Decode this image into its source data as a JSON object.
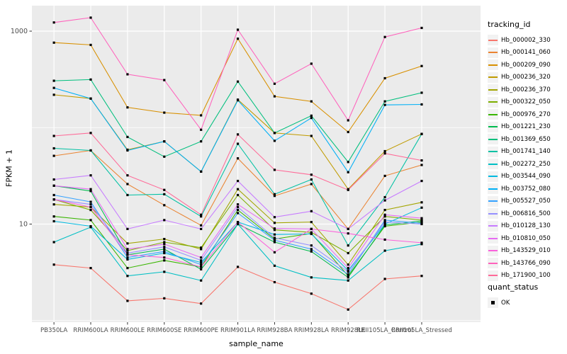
{
  "chart_data": {
    "type": "line",
    "title": "",
    "xlabel": "sample_name",
    "ylabel": "FPKM + 1",
    "y_scale": "log10",
    "y_tick_values": [
      10,
      1000
    ],
    "y_tick_labels": [
      "10",
      "1000"
    ],
    "y_minor_gridlines": [
      1,
      100
    ],
    "ylim": [
      0.95,
      1750
    ],
    "grid": "on",
    "legend_position": "right",
    "legend_title": "tracking_id",
    "quant_legend": {
      "title": "quant_status",
      "items": [
        "OK"
      ],
      "marker": "black-square"
    },
    "point_marker": "black-square",
    "categories": [
      "PB350LA",
      "RRIM600LA",
      "RRIM600LE",
      "RRIM600SE",
      "RRIM600PE",
      "RRIM901LA",
      "RRIM928BA",
      "RRIM928LA",
      "RRIM928LE",
      "RRII105LA_Control",
      "RRII105LA_Stressed"
    ],
    "series": [
      {
        "name": "Hb_000002_330",
        "color": "#F8766D",
        "values": [
          3.8,
          3.5,
          1.6,
          1.7,
          1.5,
          3.6,
          2.5,
          1.9,
          1.3,
          2.7,
          2.9
        ]
      },
      {
        "name": "Hb_000141_060",
        "color": "#EA8331",
        "values": [
          51,
          58,
          26,
          15.7,
          9.7,
          48,
          19.6,
          26,
          8.9,
          31.6,
          41
        ]
      },
      {
        "name": "Hb_000209_090",
        "color": "#D89000",
        "values": [
          760,
          720,
          162,
          143,
          134,
          835,
          211,
          187,
          90,
          325,
          435
        ]
      },
      {
        "name": "Hb_000236_320",
        "color": "#C09B00",
        "values": [
          219,
          200,
          59,
          72,
          35,
          195,
          88,
          82,
          23,
          57,
          86
        ]
      },
      {
        "name": "Hb_000236_370",
        "color": "#A3A500",
        "values": [
          16,
          15,
          6.3,
          7.0,
          5.5,
          23,
          10.3,
          10.5,
          3.8,
          14,
          16.8
        ]
      },
      {
        "name": "Hb_000322_050",
        "color": "#7CAE00",
        "values": [
          18,
          14,
          5.3,
          6.5,
          5.7,
          20,
          8.7,
          8.2,
          5.0,
          12,
          11
        ]
      },
      {
        "name": "Hb_000976_270",
        "color": "#39B600",
        "values": [
          12,
          11,
          3.5,
          4.2,
          3.6,
          14,
          7.0,
          8.0,
          2.9,
          9.5,
          10.5
        ]
      },
      {
        "name": "Hb_001221_230",
        "color": "#00BB4E",
        "values": [
          25,
          22,
          4.8,
          5.5,
          3.4,
          10,
          6.5,
          5.2,
          2.8,
          9.8,
          10.8
        ]
      },
      {
        "name": "Hb_001369_650",
        "color": "#00BF7D",
        "values": [
          306,
          315,
          80,
          50,
          72,
          300,
          88,
          133,
          44,
          187,
          230
        ]
      },
      {
        "name": "Hb_001741_140",
        "color": "#00C1A3",
        "values": [
          61,
          58,
          20,
          20.4,
          12,
          68,
          20.4,
          29,
          6.0,
          19,
          86
        ]
      },
      {
        "name": "Hb_002272_250",
        "color": "#00BFC4",
        "values": [
          6.5,
          9.3,
          2.9,
          3.2,
          2.6,
          10,
          3.7,
          2.8,
          2.6,
          5.3,
          6.2
        ]
      },
      {
        "name": "Hb_003544_090",
        "color": "#00BAE0",
        "values": [
          10.7,
          9.5,
          4.3,
          5.0,
          4.0,
          10.5,
          7.8,
          7.9,
          3.3,
          10,
          14.8
        ]
      },
      {
        "name": "Hb_003752_080",
        "color": "#00B0F6",
        "values": [
          258,
          200,
          58,
          72,
          35,
          192,
          73,
          126,
          34.5,
          172,
          174
        ]
      },
      {
        "name": "Hb_005527_050",
        "color": "#35A2FF",
        "values": [
          20,
          17,
          4.5,
          5.2,
          3.8,
          13,
          6.8,
          5.5,
          3.0,
          11,
          10.2
        ]
      },
      {
        "name": "Hb_006816_500",
        "color": "#9590FF",
        "values": [
          18,
          16,
          5.0,
          5.8,
          4.2,
          15,
          7.2,
          6.0,
          3.2,
          10.5,
          10.0
        ]
      },
      {
        "name": "Hb_010128_130",
        "color": "#C77CFF",
        "values": [
          29,
          32,
          8.9,
          11,
          8.9,
          28,
          11.8,
          13.6,
          8.9,
          17.6,
          28
        ]
      },
      {
        "name": "Hb_010810_050",
        "color": "#E76BF3",
        "values": [
          25,
          23,
          5.5,
          6.2,
          4.5,
          16,
          9.0,
          8.9,
          3.5,
          12.5,
          11.5
        ]
      },
      {
        "name": "Hb_143529_010",
        "color": "#FA62DB",
        "values": [
          18,
          15,
          4.8,
          4.5,
          3.6,
          10.5,
          5.1,
          8.9,
          8.0,
          6.9,
          6.4
        ]
      },
      {
        "name": "Hb_143766_090",
        "color": "#FF62BC",
        "values": [
          1230,
          1380,
          357,
          311,
          95,
          1035,
          285,
          460,
          119,
          870,
          1080
        ]
      },
      {
        "name": "Hb_171900_100",
        "color": "#FF6A98",
        "values": [
          82,
          88,
          32,
          22.6,
          12.5,
          85,
          36.5,
          32.5,
          22.6,
          54,
          45.7
        ]
      }
    ],
    "style": {
      "panel_bg": "#EBEBEB",
      "grid_color": "#FFFFFF",
      "tick_color": "#333333",
      "tick_text_color": "#4D4D4D",
      "point_color": "#000000"
    }
  }
}
